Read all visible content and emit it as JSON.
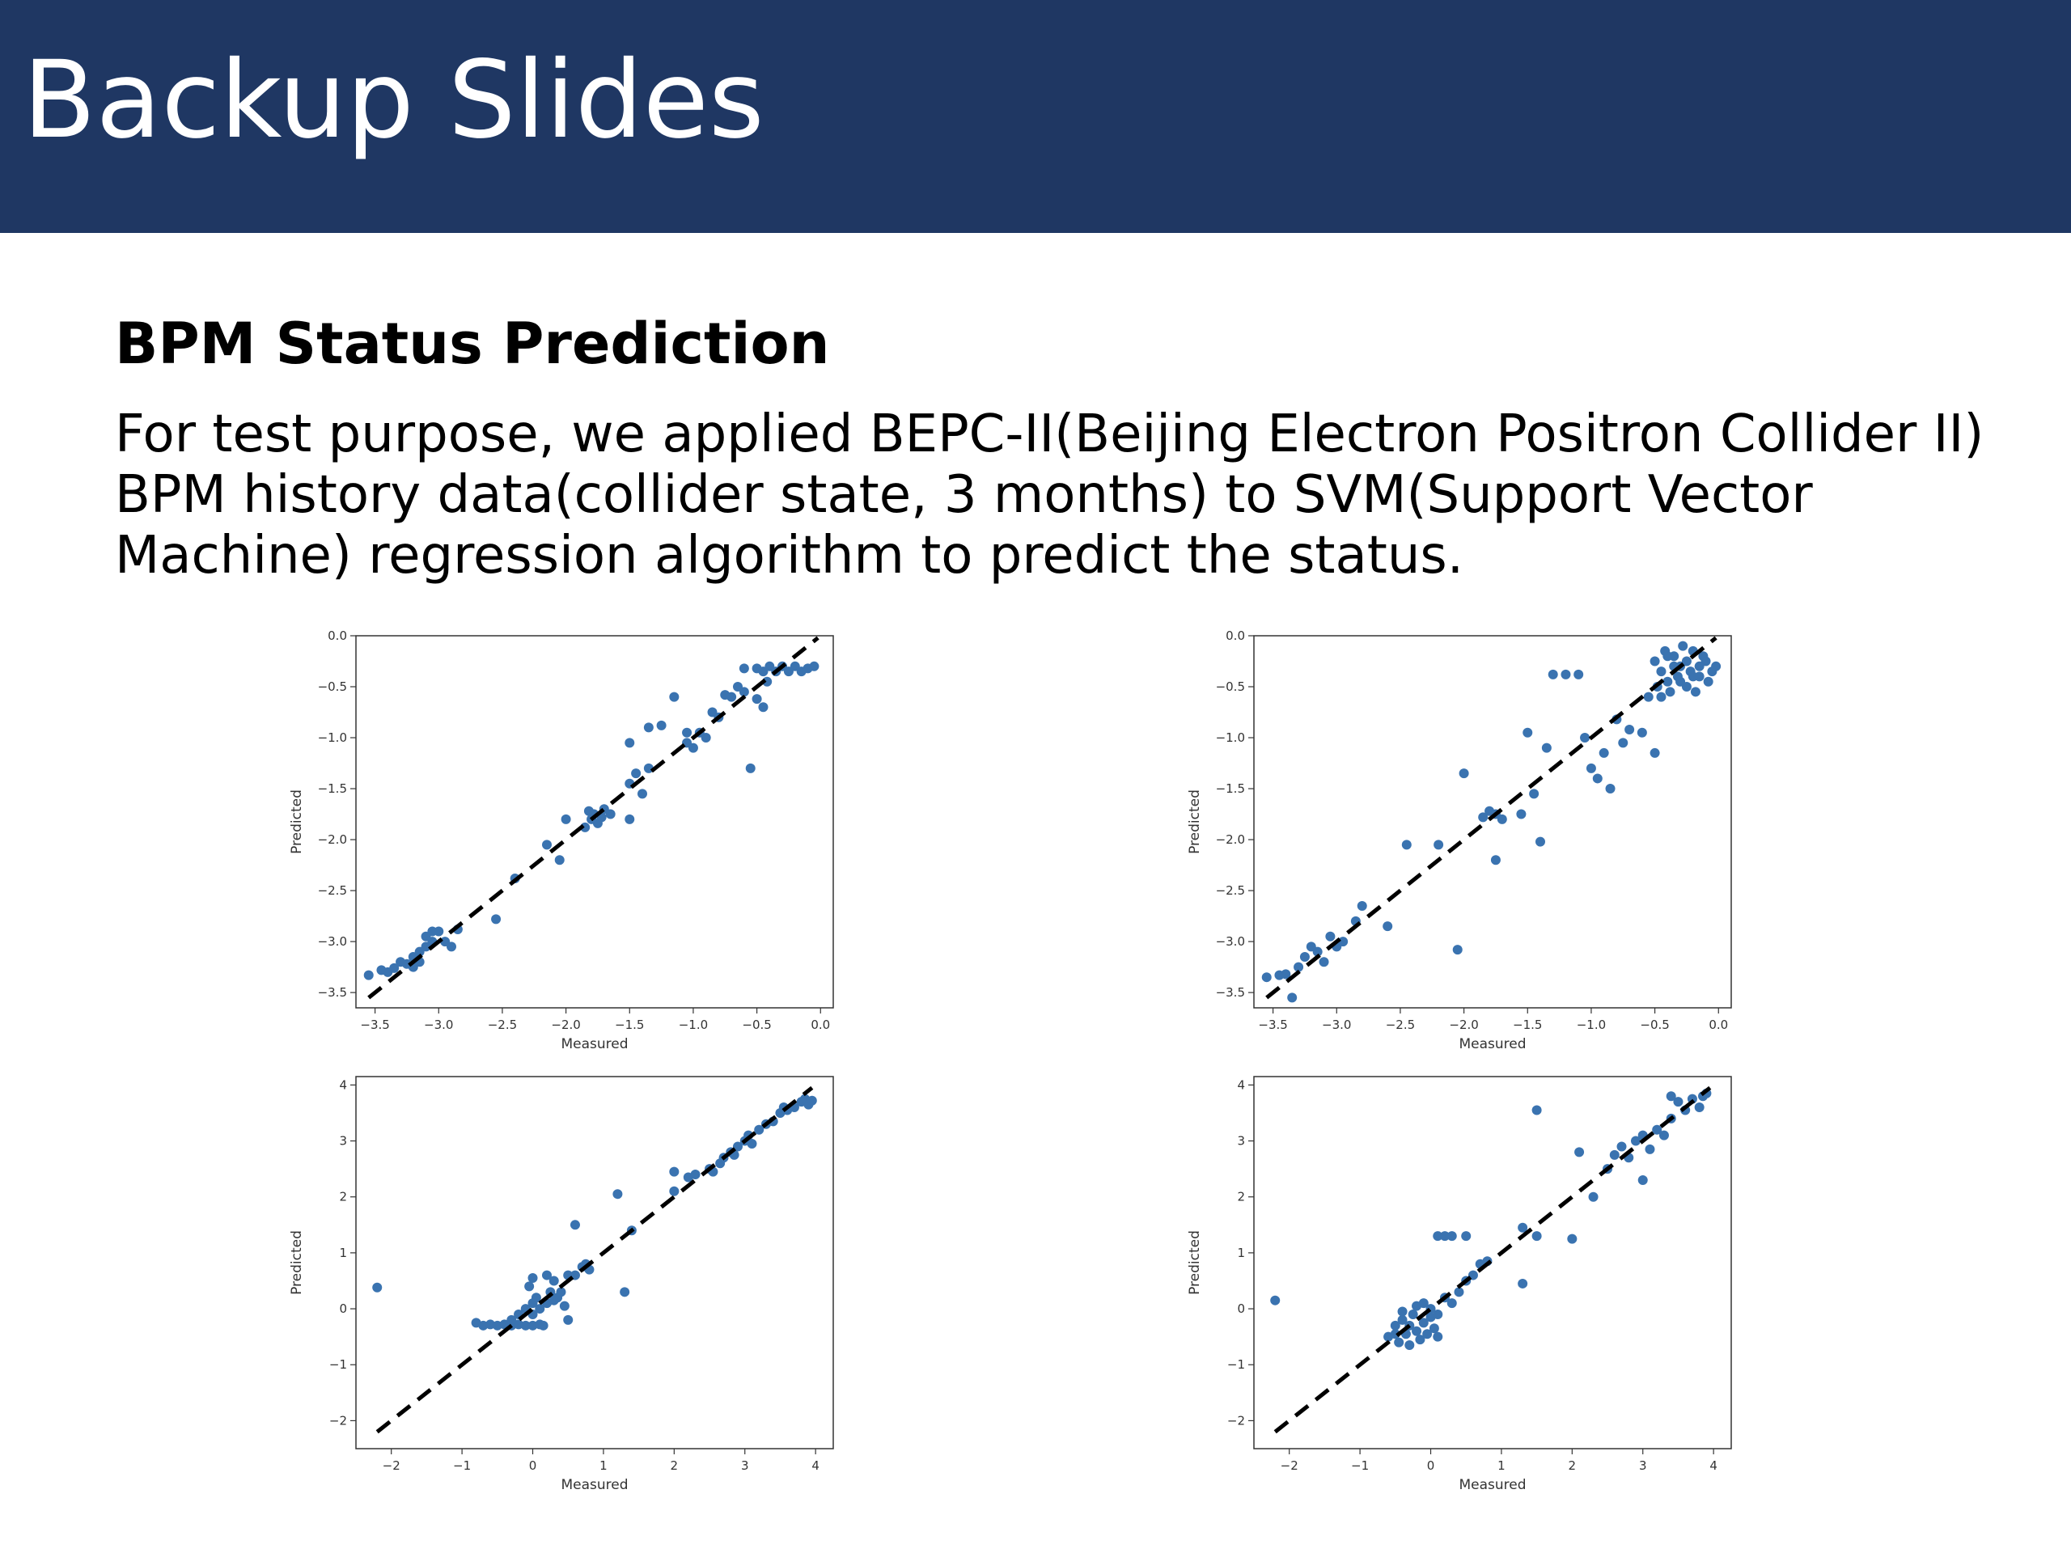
{
  "slide": {
    "title": "Backup Slides",
    "subtitle": "BPM Status Prediction",
    "body_lines": [
      "For test purpose, we applied BEPC-II(Beijing Electron Positron Collider II)",
      "BPM history data(collider state, 3 months) to SVM(Support Vector",
      "Machine) regression algorithm to predict the status."
    ],
    "colors": {
      "banner": "#1f3763",
      "points": "#3a73b0",
      "reference_line": "#000000"
    }
  },
  "chart_data": [
    {
      "type": "scatter",
      "xlabel": "Measured",
      "ylabel": "Predicted",
      "xlim": [
        -3.65,
        0.1
      ],
      "ylim": [
        -3.65,
        0.0
      ],
      "xticks": [
        -3.5,
        -3.0,
        -2.5,
        -2.0,
        -1.5,
        -1.0,
        -0.5,
        0.0
      ],
      "xtick_labels": [
        "−3.5",
        "−3.0",
        "−2.5",
        "−2.0",
        "−1.5",
        "−1.0",
        "−0.5",
        "0.0"
      ],
      "yticks": [
        0.0,
        -0.5,
        -1.0,
        -1.5,
        -2.0,
        -2.5,
        -3.0,
        -3.5
      ],
      "ytick_labels": [
        "0.0",
        "−0.5",
        "−1.0",
        "−1.5",
        "−2.0",
        "−2.5",
        "−3.0",
        "−3.5"
      ],
      "reference_line": [
        [
          -3.55,
          -3.55
        ],
        [
          -0.02,
          -0.02
        ]
      ],
      "points": [
        [
          -3.55,
          -3.33
        ],
        [
          -3.45,
          -3.28
        ],
        [
          -3.4,
          -3.3
        ],
        [
          -3.35,
          -3.26
        ],
        [
          -3.3,
          -3.2
        ],
        [
          -3.25,
          -3.22
        ],
        [
          -3.2,
          -3.15
        ],
        [
          -3.15,
          -3.1
        ],
        [
          -3.1,
          -3.05
        ],
        [
          -3.05,
          -3.0
        ],
        [
          -3.2,
          -3.25
        ],
        [
          -3.15,
          -3.2
        ],
        [
          -3.05,
          -2.9
        ],
        [
          -3.0,
          -2.9
        ],
        [
          -2.95,
          -3.0
        ],
        [
          -2.9,
          -3.05
        ],
        [
          -3.1,
          -2.95
        ],
        [
          -2.85,
          -2.88
        ],
        [
          -2.55,
          -2.78
        ],
        [
          -2.4,
          -2.38
        ],
        [
          -2.15,
          -2.05
        ],
        [
          -2.05,
          -2.2
        ],
        [
          -2.0,
          -1.8
        ],
        [
          -1.85,
          -1.88
        ],
        [
          -1.82,
          -1.72
        ],
        [
          -1.8,
          -1.8
        ],
        [
          -1.78,
          -1.75
        ],
        [
          -1.75,
          -1.84
        ],
        [
          -1.72,
          -1.78
        ],
        [
          -1.7,
          -1.7
        ],
        [
          -1.65,
          -1.75
        ],
        [
          -1.5,
          -1.8
        ],
        [
          -1.5,
          -1.45
        ],
        [
          -1.45,
          -1.35
        ],
        [
          -1.4,
          -1.55
        ],
        [
          -1.35,
          -1.3
        ],
        [
          -1.5,
          -1.05
        ],
        [
          -1.35,
          -0.9
        ],
        [
          -1.25,
          -0.88
        ],
        [
          -1.15,
          -0.6
        ],
        [
          -1.05,
          -0.95
        ],
        [
          -1.05,
          -1.05
        ],
        [
          -1.0,
          -1.1
        ],
        [
          -0.95,
          -0.95
        ],
        [
          -0.9,
          -1.0
        ],
        [
          -0.85,
          -0.75
        ],
        [
          -0.8,
          -0.8
        ],
        [
          -0.75,
          -0.58
        ],
        [
          -0.7,
          -0.6
        ],
        [
          -0.65,
          -0.5
        ],
        [
          -0.6,
          -0.55
        ],
        [
          -0.55,
          -1.3
        ],
        [
          -0.5,
          -0.62
        ],
        [
          -0.45,
          -0.7
        ],
        [
          -0.42,
          -0.45
        ],
        [
          -0.6,
          -0.32
        ],
        [
          -0.5,
          -0.32
        ],
        [
          -0.4,
          -0.3
        ],
        [
          -0.3,
          -0.3
        ],
        [
          -0.2,
          -0.3
        ],
        [
          -0.1,
          -0.32
        ],
        [
          -0.05,
          -0.3
        ],
        [
          -0.35,
          -0.35
        ],
        [
          -0.25,
          -0.35
        ],
        [
          -0.15,
          -0.35
        ],
        [
          -0.45,
          -0.35
        ]
      ]
    },
    {
      "type": "scatter",
      "xlabel": "Measured",
      "ylabel": "Predicted",
      "xlim": [
        -3.65,
        0.1
      ],
      "ylim": [
        -3.65,
        0.0
      ],
      "xticks": [
        -3.5,
        -3.0,
        -2.5,
        -2.0,
        -1.5,
        -1.0,
        -0.5,
        0.0
      ],
      "xtick_labels": [
        "−3.5",
        "−3.0",
        "−2.5",
        "−2.0",
        "−1.5",
        "−1.0",
        "−0.5",
        "0.0"
      ],
      "yticks": [
        0.0,
        -0.5,
        -1.0,
        -1.5,
        -2.0,
        -2.5,
        -3.0,
        -3.5
      ],
      "ytick_labels": [
        "0.0",
        "−0.5",
        "−1.0",
        "−1.5",
        "−2.0",
        "−2.5",
        "−3.0",
        "−3.5"
      ],
      "reference_line": [
        [
          -3.55,
          -3.55
        ],
        [
          -0.02,
          -0.02
        ]
      ],
      "points": [
        [
          -3.55,
          -3.35
        ],
        [
          -3.45,
          -3.33
        ],
        [
          -3.4,
          -3.32
        ],
        [
          -3.35,
          -3.55
        ],
        [
          -3.3,
          -3.25
        ],
        [
          -3.25,
          -3.15
        ],
        [
          -3.2,
          -3.05
        ],
        [
          -3.15,
          -3.1
        ],
        [
          -3.1,
          -3.2
        ],
        [
          -3.05,
          -2.95
        ],
        [
          -3.0,
          -3.05
        ],
        [
          -2.95,
          -3.0
        ],
        [
          -2.85,
          -2.8
        ],
        [
          -2.8,
          -2.65
        ],
        [
          -2.6,
          -2.85
        ],
        [
          -2.45,
          -2.05
        ],
        [
          -2.2,
          -2.05
        ],
        [
          -2.05,
          -3.08
        ],
        [
          -2.0,
          -1.35
        ],
        [
          -1.85,
          -1.78
        ],
        [
          -1.8,
          -1.72
        ],
        [
          -1.75,
          -1.75
        ],
        [
          -1.7,
          -1.8
        ],
        [
          -1.75,
          -2.2
        ],
        [
          -1.55,
          -1.75
        ],
        [
          -1.5,
          -0.95
        ],
        [
          -1.45,
          -1.55
        ],
        [
          -1.4,
          -2.02
        ],
        [
          -1.35,
          -1.1
        ],
        [
          -1.3,
          -0.38
        ],
        [
          -1.2,
          -0.38
        ],
        [
          -1.1,
          -0.38
        ],
        [
          -1.05,
          -1.0
        ],
        [
          -1.0,
          -1.3
        ],
        [
          -0.95,
          -1.4
        ],
        [
          -0.9,
          -1.15
        ],
        [
          -0.85,
          -1.5
        ],
        [
          -0.8,
          -0.82
        ],
        [
          -0.75,
          -1.05
        ],
        [
          -0.7,
          -0.92
        ],
        [
          -0.6,
          -0.95
        ],
        [
          -0.55,
          -0.6
        ],
        [
          -0.5,
          -1.15
        ],
        [
          -0.45,
          -0.6
        ],
        [
          -0.5,
          -0.25
        ],
        [
          -0.45,
          -0.35
        ],
        [
          -0.4,
          -0.45
        ],
        [
          -0.35,
          -0.2
        ],
        [
          -0.3,
          -0.3
        ],
        [
          -0.25,
          -0.5
        ],
        [
          -0.2,
          -0.15
        ],
        [
          -0.15,
          -0.4
        ],
        [
          -0.1,
          -0.25
        ],
        [
          -0.05,
          -0.35
        ],
        [
          -0.48,
          -0.5
        ],
        [
          -0.42,
          -0.15
        ],
        [
          -0.38,
          -0.55
        ],
        [
          -0.32,
          -0.4
        ],
        [
          -0.28,
          -0.1
        ],
        [
          -0.22,
          -0.35
        ],
        [
          -0.18,
          -0.55
        ],
        [
          -0.12,
          -0.2
        ],
        [
          -0.08,
          -0.45
        ],
        [
          -0.02,
          -0.3
        ],
        [
          -0.35,
          -0.3
        ],
        [
          -0.25,
          -0.25
        ],
        [
          -0.15,
          -0.3
        ],
        [
          -0.4,
          -0.2
        ],
        [
          -0.3,
          -0.45
        ],
        [
          -0.2,
          -0.4
        ]
      ]
    },
    {
      "type": "scatter",
      "xlabel": "Measured",
      "ylabel": "Predicted",
      "xlim": [
        -2.5,
        4.25
      ],
      "ylim": [
        -2.5,
        4.15
      ],
      "xticks": [
        -2,
        -1,
        0,
        1,
        2,
        3,
        4
      ],
      "xtick_labels": [
        "−2",
        "−1",
        "0",
        "1",
        "2",
        "3",
        "4"
      ],
      "yticks": [
        4,
        3,
        2,
        1,
        0,
        -1,
        -2
      ],
      "ytick_labels": [
        "4",
        "3",
        "2",
        "1",
        "0",
        "−1",
        "−2"
      ],
      "reference_line": [
        [
          -2.2,
          -2.2
        ],
        [
          3.95,
          3.95
        ]
      ],
      "points": [
        [
          -2.2,
          0.38
        ],
        [
          -0.8,
          -0.25
        ],
        [
          -0.7,
          -0.3
        ],
        [
          -0.6,
          -0.28
        ],
        [
          -0.5,
          -0.3
        ],
        [
          -0.4,
          -0.28
        ],
        [
          -0.3,
          -0.3
        ],
        [
          -0.2,
          -0.28
        ],
        [
          -0.1,
          -0.3
        ],
        [
          0.0,
          -0.3
        ],
        [
          0.1,
          -0.28
        ],
        [
          0.15,
          -0.3
        ],
        [
          -0.3,
          -0.2
        ],
        [
          -0.2,
          -0.1
        ],
        [
          -0.1,
          0.0
        ],
        [
          0.0,
          -0.1
        ],
        [
          0.0,
          0.1
        ],
        [
          0.05,
          0.2
        ],
        [
          0.1,
          0.0
        ],
        [
          0.2,
          0.1
        ],
        [
          0.25,
          0.3
        ],
        [
          0.3,
          0.15
        ],
        [
          0.35,
          0.2
        ],
        [
          -0.05,
          0.4
        ],
        [
          0.0,
          0.55
        ],
        [
          0.2,
          0.6
        ],
        [
          0.3,
          0.5
        ],
        [
          0.4,
          0.3
        ],
        [
          0.45,
          0.05
        ],
        [
          0.5,
          -0.2
        ],
        [
          0.5,
          0.6
        ],
        [
          0.6,
          1.5
        ],
        [
          0.6,
          0.6
        ],
        [
          0.7,
          0.75
        ],
        [
          0.75,
          0.8
        ],
        [
          0.8,
          0.7
        ],
        [
          1.2,
          2.05
        ],
        [
          1.3,
          0.3
        ],
        [
          1.4,
          1.4
        ],
        [
          2.0,
          2.1
        ],
        [
          2.0,
          2.45
        ],
        [
          2.2,
          2.35
        ],
        [
          2.3,
          2.4
        ],
        [
          2.5,
          2.5
        ],
        [
          2.55,
          2.45
        ],
        [
          2.65,
          2.6
        ],
        [
          2.7,
          2.7
        ],
        [
          2.8,
          2.8
        ],
        [
          2.85,
          2.75
        ],
        [
          2.9,
          2.9
        ],
        [
          3.0,
          3.0
        ],
        [
          3.05,
          3.1
        ],
        [
          3.1,
          2.95
        ],
        [
          3.2,
          3.2
        ],
        [
          3.3,
          3.3
        ],
        [
          3.4,
          3.35
        ],
        [
          3.5,
          3.5
        ],
        [
          3.55,
          3.6
        ],
        [
          3.6,
          3.55
        ],
        [
          3.7,
          3.6
        ],
        [
          3.8,
          3.7
        ],
        [
          3.85,
          3.75
        ],
        [
          3.9,
          3.65
        ],
        [
          3.95,
          3.72
        ]
      ]
    },
    {
      "type": "scatter",
      "xlabel": "Measured",
      "ylabel": "Predicted",
      "xlim": [
        -2.5,
        4.25
      ],
      "ylim": [
        -2.5,
        4.15
      ],
      "xticks": [
        -2,
        -1,
        0,
        1,
        2,
        3,
        4
      ],
      "xtick_labels": [
        "−2",
        "−1",
        "0",
        "1",
        "2",
        "3",
        "4"
      ],
      "yticks": [
        4,
        3,
        2,
        1,
        0,
        -1,
        -2
      ],
      "ytick_labels": [
        "4",
        "3",
        "2",
        "1",
        "0",
        "−1",
        "−2"
      ],
      "reference_line": [
        [
          -2.2,
          -2.2
        ],
        [
          3.95,
          3.95
        ]
      ],
      "points": [
        [
          -2.2,
          0.15
        ],
        [
          -0.6,
          -0.5
        ],
        [
          -0.5,
          -0.3
        ],
        [
          -0.45,
          -0.6
        ],
        [
          -0.4,
          -0.2
        ],
        [
          -0.35,
          -0.45
        ],
        [
          -0.3,
          -0.65
        ],
        [
          -0.25,
          -0.1
        ],
        [
          -0.2,
          -0.4
        ],
        [
          -0.15,
          -0.55
        ],
        [
          -0.1,
          -0.25
        ],
        [
          -0.05,
          -0.45
        ],
        [
          0.0,
          -0.15
        ],
        [
          0.05,
          -0.35
        ],
        [
          0.1,
          -0.5
        ],
        [
          -0.5,
          -0.45
        ],
        [
          -0.4,
          -0.05
        ],
        [
          -0.3,
          -0.3
        ],
        [
          -0.2,
          0.05
        ],
        [
          -0.1,
          0.1
        ],
        [
          0.0,
          0.0
        ],
        [
          0.1,
          -0.1
        ],
        [
          0.2,
          0.2
        ],
        [
          0.3,
          0.1
        ],
        [
          0.4,
          0.3
        ],
        [
          0.1,
          1.3
        ],
        [
          0.2,
          1.3
        ],
        [
          0.3,
          1.3
        ],
        [
          0.5,
          1.3
        ],
        [
          0.5,
          0.5
        ],
        [
          0.6,
          0.6
        ],
        [
          0.7,
          0.8
        ],
        [
          0.8,
          0.85
        ],
        [
          1.3,
          1.45
        ],
        [
          1.3,
          0.45
        ],
        [
          1.5,
          3.55
        ],
        [
          1.5,
          1.3
        ],
        [
          2.0,
          1.25
        ],
        [
          2.1,
          2.8
        ],
        [
          2.3,
          2.0
        ],
        [
          2.5,
          2.5
        ],
        [
          2.6,
          2.75
        ],
        [
          2.7,
          2.9
        ],
        [
          2.8,
          2.7
        ],
        [
          2.9,
          3.0
        ],
        [
          3.0,
          2.3
        ],
        [
          3.0,
          3.1
        ],
        [
          3.1,
          2.85
        ],
        [
          3.2,
          3.2
        ],
        [
          3.3,
          3.1
        ],
        [
          3.4,
          3.4
        ],
        [
          3.5,
          3.7
        ],
        [
          3.6,
          3.55
        ],
        [
          3.7,
          3.75
        ],
        [
          3.8,
          3.6
        ],
        [
          3.85,
          3.8
        ],
        [
          3.9,
          3.85
        ],
        [
          3.4,
          3.8
        ]
      ]
    }
  ]
}
